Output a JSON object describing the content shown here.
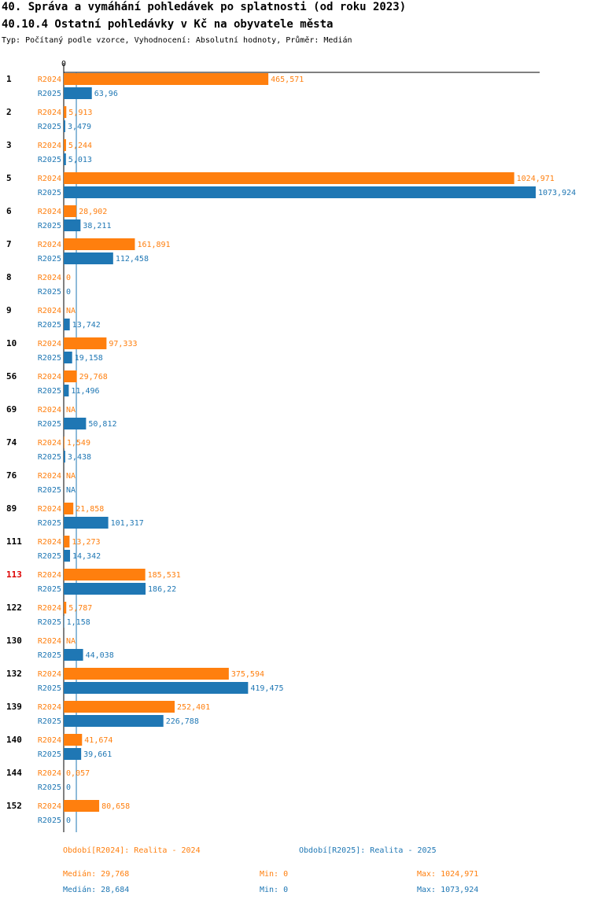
{
  "chart_data": {
    "type": "bar",
    "orientation": "horizontal",
    "title": "40. Správa a vymáhání pohledávek po splatnosti (od roku 2023)",
    "subtitle": "40.10.4 Ostatní pohledávky v Kč na obyvatele města",
    "description": "Typ: Počítaný podle vzorce, Vyhodnocení: Absolutní hodnoty, Průměr: Medián",
    "axis_zero_label": "0",
    "xlim": [
      0,
      1073.924
    ],
    "highlight_category": "113",
    "highlight_color": "#dd0000",
    "categories": [
      "1",
      "2",
      "3",
      "5",
      "6",
      "7",
      "8",
      "9",
      "10",
      "56",
      "69",
      "74",
      "76",
      "89",
      "111",
      "113",
      "122",
      "130",
      "132",
      "139",
      "140",
      "144",
      "152"
    ],
    "series": [
      {
        "name": "R2024",
        "color": "#ff7f0e",
        "values": [
          465.571,
          5.913,
          5.244,
          1024.971,
          28.902,
          161.891,
          0,
          null,
          97.333,
          29.768,
          null,
          1.549,
          null,
          21.858,
          13.273,
          185.531,
          5.787,
          null,
          375.594,
          252.401,
          41.674,
          0.057,
          80.658
        ],
        "labels": [
          "465,571",
          "5,913",
          "5,244",
          "1024,971",
          "28,902",
          "161,891",
          "0",
          "NA",
          "97,333",
          "29,768",
          "NA",
          "1,549",
          "NA",
          "21,858",
          "13,273",
          "185,531",
          "5,787",
          "NA",
          "375,594",
          "252,401",
          "41,674",
          "0,057",
          "80,658"
        ]
      },
      {
        "name": "R2025",
        "color": "#1f77b4",
        "values": [
          63.96,
          3.479,
          5.013,
          1073.924,
          38.211,
          112.458,
          0,
          13.742,
          19.158,
          11.496,
          50.812,
          3.438,
          null,
          101.317,
          14.342,
          186.22,
          1.158,
          44.038,
          419.475,
          226.788,
          39.661,
          0,
          0
        ],
        "labels": [
          "63,96",
          "3,479",
          "5,013",
          "1073,924",
          "38,211",
          "112,458",
          "0",
          "13,742",
          "19,158",
          "11,496",
          "50,812",
          "3,438",
          "NA",
          "101,317",
          "14,342",
          "186,22",
          "1,158",
          "44,038",
          "419,475",
          "226,788",
          "39,661",
          "0",
          "0"
        ]
      }
    ],
    "median_line": {
      "series": "R2025",
      "value": 28.684
    },
    "legend": [
      {
        "series": "R2024",
        "text": "Období[R2024]: Realita - 2024"
      },
      {
        "series": "R2025",
        "text": "Období[R2025]: Realita - 2025"
      }
    ],
    "stats": [
      {
        "series": "R2024",
        "median": "Medián: 29,768",
        "min": "Min: 0",
        "max": "Max: 1024,971"
      },
      {
        "series": "R2025",
        "median": "Medián: 28,684",
        "min": "Min: 0",
        "max": "Max: 1073,924"
      }
    ]
  }
}
